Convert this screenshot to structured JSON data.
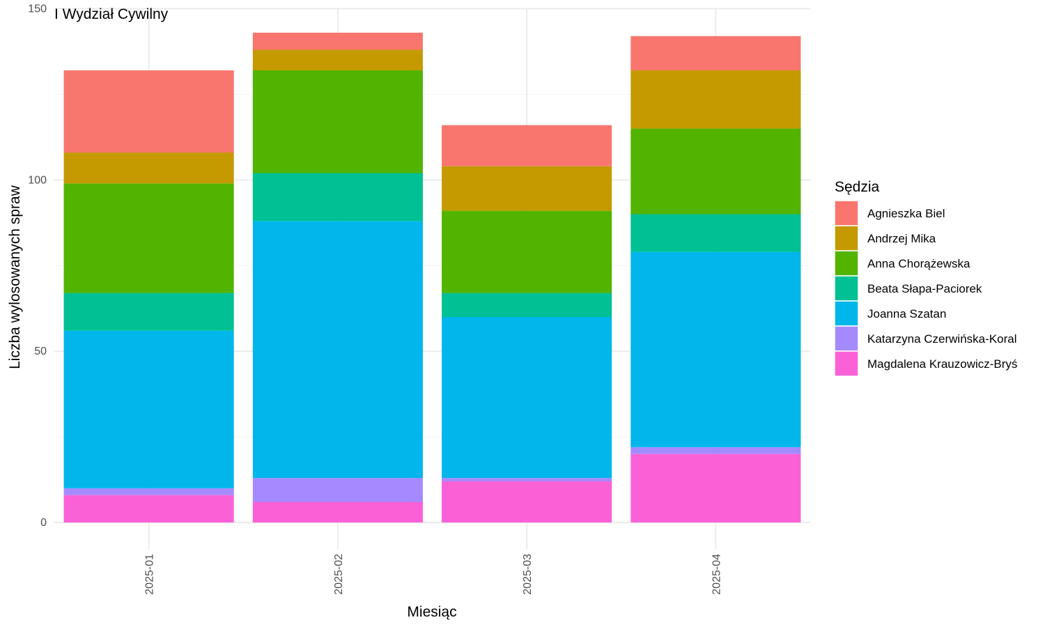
{
  "chart_data": {
    "type": "bar",
    "stacked": true,
    "title": "I Wydział Cywilny",
    "xlabel": "Miesiąc",
    "ylabel": "Liczba wylosowanych spraw",
    "ylim": [
      0,
      150
    ],
    "yticks": [
      0,
      50,
      100,
      150
    ],
    "grid": true,
    "legend": {
      "title": "Sędzia",
      "position": "right"
    },
    "categories": [
      "2025-01",
      "2025-02",
      "2025-03",
      "2025-04"
    ],
    "series": [
      {
        "name": "Agnieszka Biel",
        "color": "#F8766D",
        "values": [
          24,
          5,
          12,
          10
        ]
      },
      {
        "name": "Andrzej Mika",
        "color": "#C49A00",
        "values": [
          9,
          6,
          13,
          17
        ]
      },
      {
        "name": "Anna Chorążewska",
        "color": "#53B400",
        "values": [
          32,
          30,
          24,
          25
        ]
      },
      {
        "name": "Beata Słapa-Paciorek",
        "color": "#00C094",
        "values": [
          11,
          14,
          7,
          11
        ]
      },
      {
        "name": "Joanna Szatan",
        "color": "#00B6EB",
        "values": [
          46,
          75,
          47,
          57
        ]
      },
      {
        "name": "Katarzyna Czerwińska-Koral",
        "color": "#A58AFF",
        "values": [
          2,
          7,
          1,
          2
        ]
      },
      {
        "name": "Magdalena Krauzowicz-Bryś",
        "color": "#FB61D7",
        "values": [
          8,
          6,
          12,
          20
        ]
      }
    ]
  }
}
